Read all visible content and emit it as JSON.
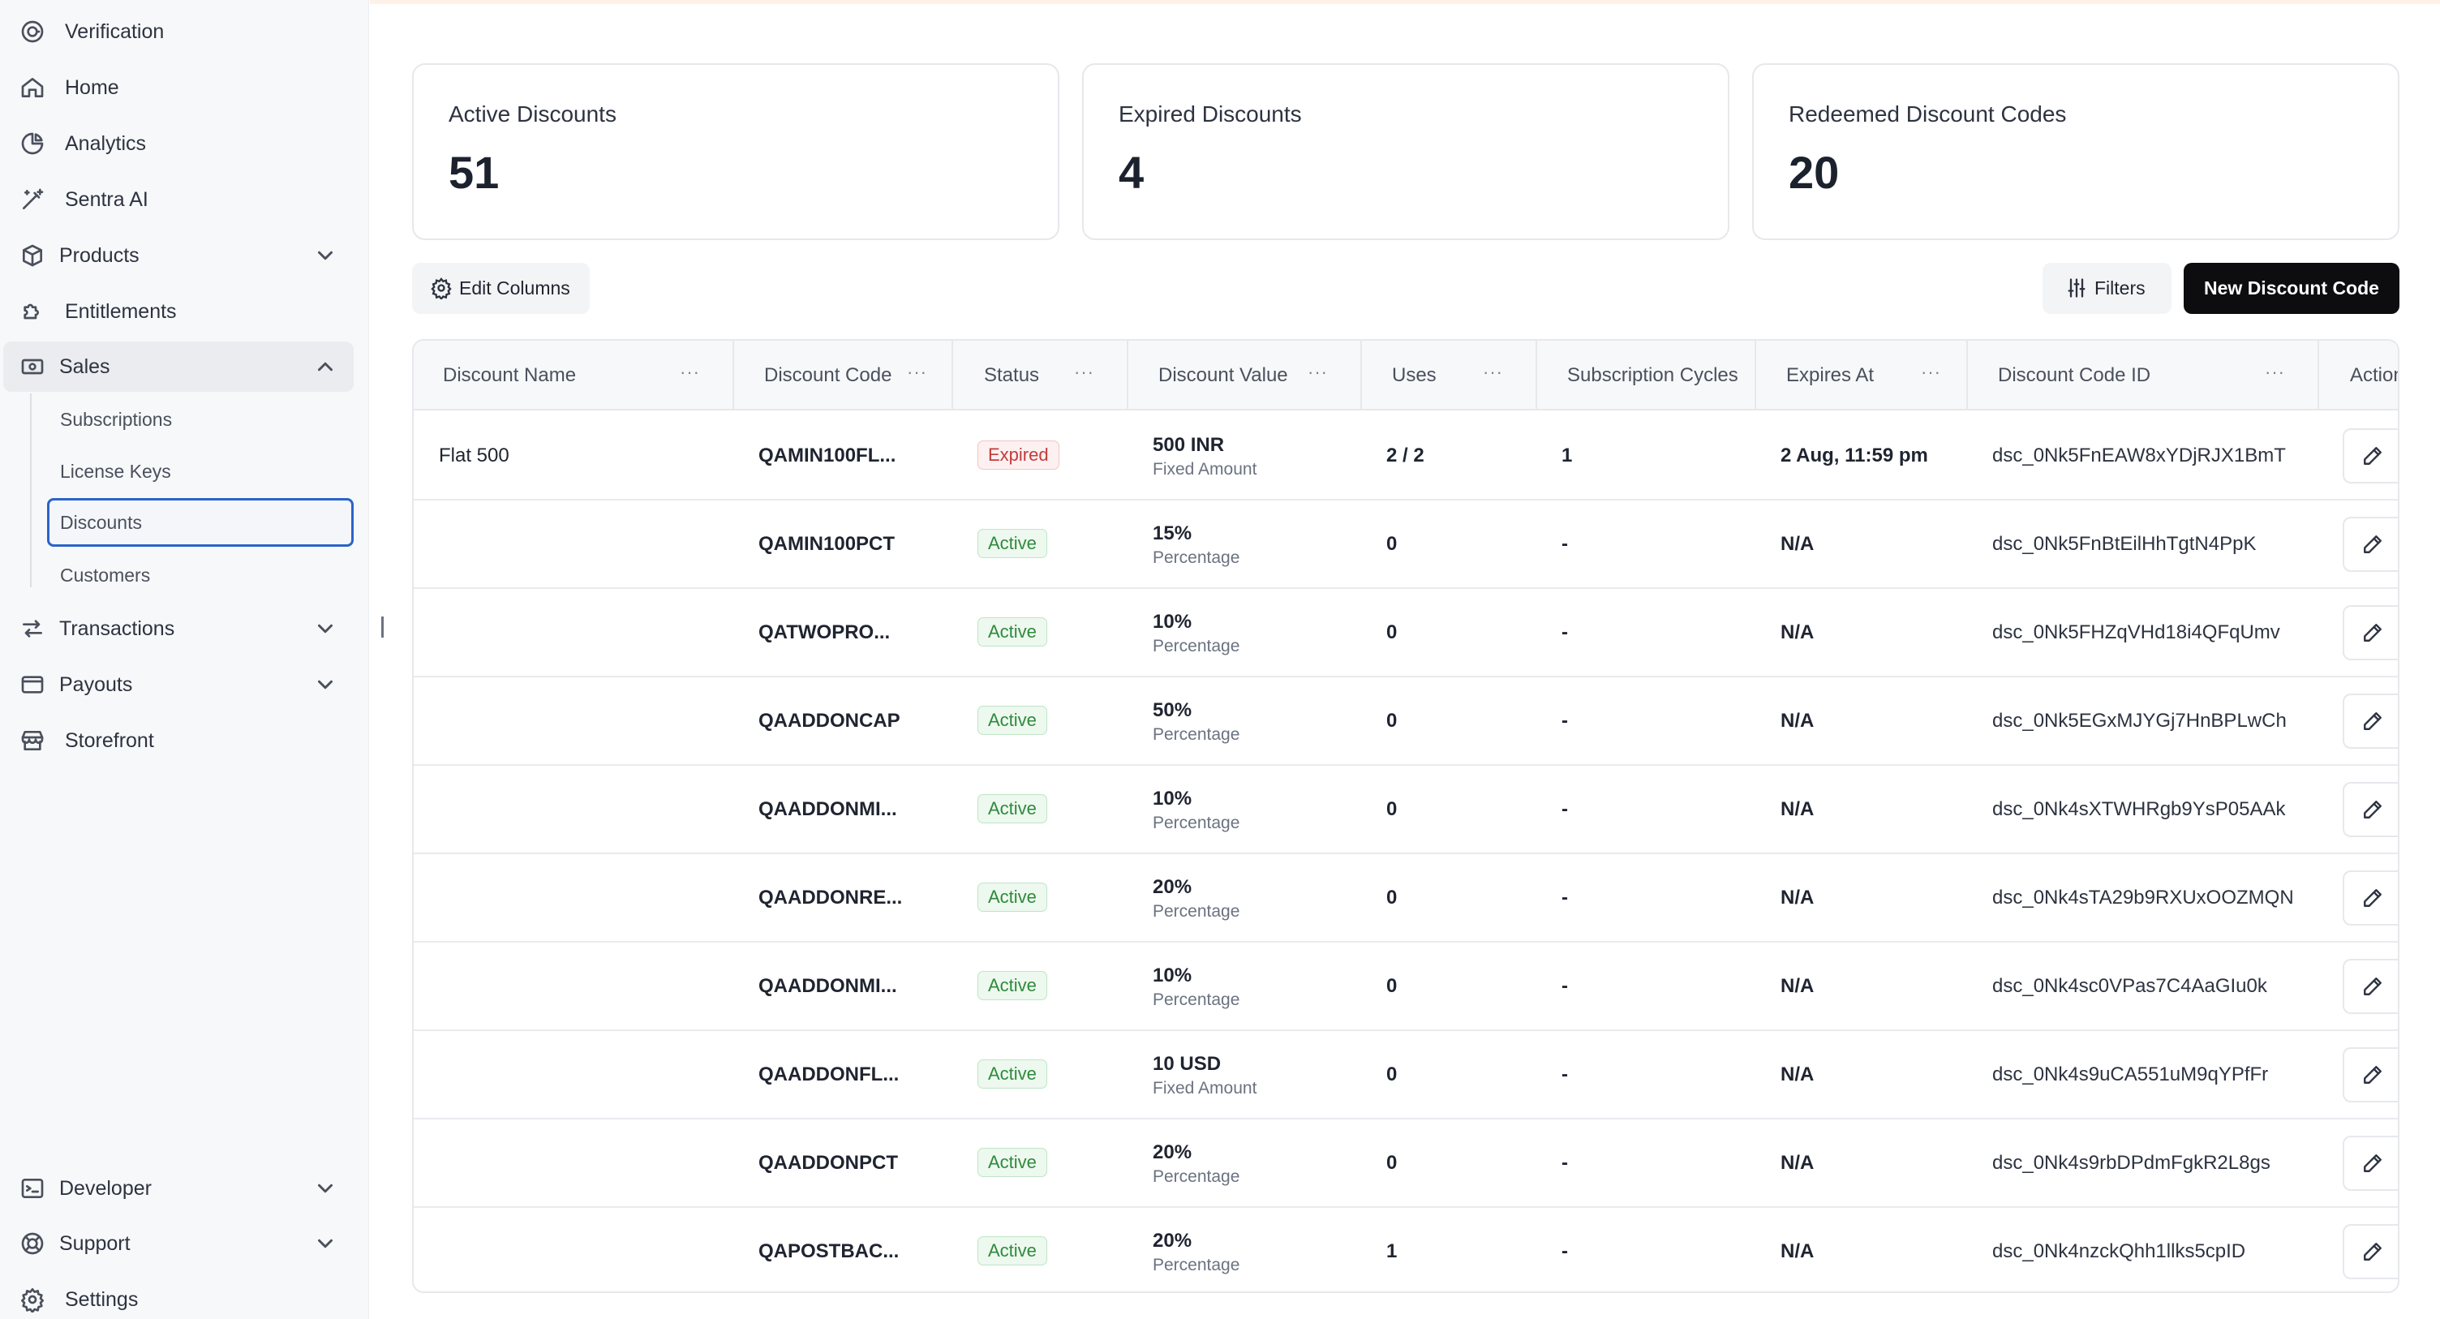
{
  "sidebar": {
    "items": [
      {
        "label": "Verification",
        "icon": "verification-icon"
      },
      {
        "label": "Home",
        "icon": "home-icon"
      },
      {
        "label": "Analytics",
        "icon": "analytics-icon"
      },
      {
        "label": "Sentra AI",
        "icon": "magic-wand-icon"
      },
      {
        "label": "Products",
        "icon": "box-icon"
      },
      {
        "label": "Entitlements",
        "icon": "puzzle-icon"
      },
      {
        "label": "Sales",
        "icon": "cash-icon"
      },
      {
        "label": "Transactions",
        "icon": "arrows-icon"
      },
      {
        "label": "Payouts",
        "icon": "wallet-icon"
      },
      {
        "label": "Storefront",
        "icon": "store-icon"
      },
      {
        "label": "Developer",
        "icon": "terminal-icon"
      },
      {
        "label": "Support",
        "icon": "lifebuoy-icon"
      },
      {
        "label": "Settings",
        "icon": "gear-icon"
      }
    ],
    "sales_sub": [
      {
        "label": "Subscriptions"
      },
      {
        "label": "License Keys"
      },
      {
        "label": "Discounts"
      },
      {
        "label": "Customers"
      }
    ]
  },
  "stats": [
    {
      "label": "Active Discounts",
      "value": "51"
    },
    {
      "label": "Expired Discounts",
      "value": "4"
    },
    {
      "label": "Redeemed Discount Codes",
      "value": "20"
    }
  ],
  "toolbar": {
    "edit_columns": "Edit Columns",
    "filters": "Filters",
    "new_discount": "New Discount Code"
  },
  "table": {
    "headers": [
      "Discount Name",
      "Discount Code",
      "Status",
      "Discount Value",
      "Uses",
      "Subscription Cycles",
      "Expires At",
      "Discount Code ID",
      "Action"
    ],
    "rows": [
      {
        "name": "Flat 500",
        "code": "QAMIN100FL...",
        "status": "Expired",
        "value": "500 INR",
        "type": "Fixed Amount",
        "uses": "2 / 2",
        "cycles": "1",
        "expires": "2 Aug, 11:59 pm",
        "id": "dsc_0Nk5FnEAW8xYDjRJX1BmT"
      },
      {
        "name": "",
        "code": "QAMIN100PCT",
        "status": "Active",
        "value": "15%",
        "type": "Percentage",
        "uses": "0",
        "cycles": "-",
        "expires": "N/A",
        "id": "dsc_0Nk5FnBtEilHhTgtN4PpK"
      },
      {
        "name": "",
        "code": "QATWOPRO...",
        "status": "Active",
        "value": "10%",
        "type": "Percentage",
        "uses": "0",
        "cycles": "-",
        "expires": "N/A",
        "id": "dsc_0Nk5FHZqVHd18i4QFqUmv"
      },
      {
        "name": "",
        "code": "QAADDONCAP",
        "status": "Active",
        "value": "50%",
        "type": "Percentage",
        "uses": "0",
        "cycles": "-",
        "expires": "N/A",
        "id": "dsc_0Nk5EGxMJYGj7HnBPLwCh"
      },
      {
        "name": "",
        "code": "QAADDONMI...",
        "status": "Active",
        "value": "10%",
        "type": "Percentage",
        "uses": "0",
        "cycles": "-",
        "expires": "N/A",
        "id": "dsc_0Nk4sXTWHRgb9YsP05AAk"
      },
      {
        "name": "",
        "code": "QAADDONRE...",
        "status": "Active",
        "value": "20%",
        "type": "Percentage",
        "uses": "0",
        "cycles": "-",
        "expires": "N/A",
        "id": "dsc_0Nk4sTA29b9RXUxOOZMQN"
      },
      {
        "name": "",
        "code": "QAADDONMI...",
        "status": "Active",
        "value": "10%",
        "type": "Percentage",
        "uses": "0",
        "cycles": "-",
        "expires": "N/A",
        "id": "dsc_0Nk4sc0VPas7C4AaGIu0k"
      },
      {
        "name": "",
        "code": "QAADDONFL...",
        "status": "Active",
        "value": "10 USD",
        "type": "Fixed Amount",
        "uses": "0",
        "cycles": "-",
        "expires": "N/A",
        "id": "dsc_0Nk4s9uCA551uM9qYPfFr"
      },
      {
        "name": "",
        "code": "QAADDONPCT",
        "status": "Active",
        "value": "20%",
        "type": "Percentage",
        "uses": "0",
        "cycles": "-",
        "expires": "N/A",
        "id": "dsc_0Nk4s9rbDPdmFgkR2L8gs"
      },
      {
        "name": "",
        "code": "QAPOSTBAC...",
        "status": "Active",
        "value": "20%",
        "type": "Percentage",
        "uses": "1",
        "cycles": "-",
        "expires": "N/A",
        "id": "dsc_0Nk4nzckQhh1llks5cpID"
      }
    ]
  },
  "colors": {
    "active_text": "#2f8a3c",
    "expired_text": "#c33b3b",
    "primary_button": "#0d0d0f",
    "selected_outline": "#2b64c9"
  }
}
